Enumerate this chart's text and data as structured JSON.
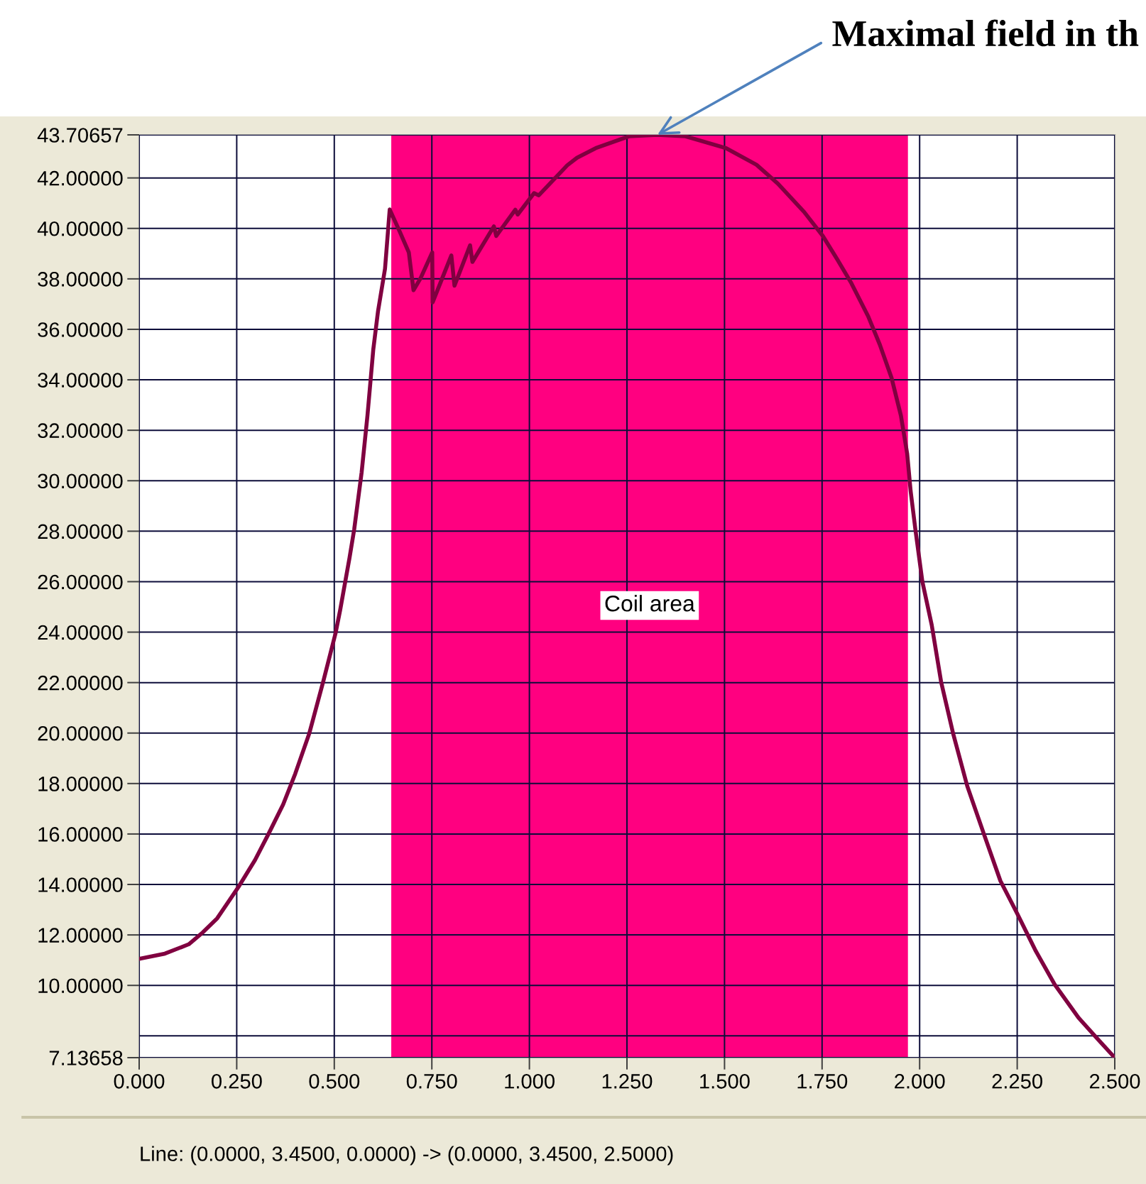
{
  "chart_data": {
    "type": "line",
    "series": [
      {
        "color": "#800040",
        "x": [
          0.0,
          0.066,
          0.127,
          0.163,
          0.2,
          0.254,
          0.297,
          0.333,
          0.369,
          0.4,
          0.436,
          0.472,
          0.503,
          0.515,
          0.539,
          0.551,
          0.57,
          0.585,
          0.6,
          0.612,
          0.63,
          0.642,
          0.667,
          0.691,
          0.703,
          0.721,
          0.751,
          0.752,
          0.776,
          0.8,
          0.808,
          0.848,
          0.854,
          0.909,
          0.915,
          0.964,
          0.97,
          1.012,
          1.024,
          1.097,
          1.122,
          1.17,
          1.255,
          1.328,
          1.4,
          1.504,
          1.582,
          1.637,
          1.704,
          1.752,
          1.789,
          1.825,
          1.868,
          1.898,
          1.928,
          1.952,
          1.968,
          1.977,
          1.989,
          2.007,
          2.031,
          2.055,
          2.086,
          2.122,
          2.164,
          2.207,
          2.25,
          2.298,
          2.346,
          2.407,
          2.456,
          2.5
        ],
        "values": [
          11.05,
          11.26,
          11.63,
          12.1,
          12.66,
          13.89,
          14.97,
          16.05,
          17.17,
          18.39,
          19.99,
          22.06,
          23.94,
          24.87,
          26.94,
          28.07,
          30.32,
          32.58,
          35.21,
          36.71,
          38.4,
          40.75,
          39.9,
          39.05,
          37.55,
          38.02,
          39.05,
          37.07,
          38.0,
          38.93,
          37.73,
          39.33,
          38.67,
          40.08,
          39.7,
          40.74,
          40.55,
          41.4,
          41.31,
          42.5,
          42.8,
          43.18,
          43.65,
          43.70657,
          43.65,
          43.18,
          42.52,
          41.77,
          40.65,
          39.7,
          38.77,
          37.83,
          36.52,
          35.39,
          34.08,
          32.58,
          31.08,
          29.58,
          28.08,
          26.0,
          24.28,
          22.03,
          19.97,
          17.9,
          16.03,
          14.14,
          12.85,
          11.35,
          10.04,
          8.72,
          7.88,
          7.13658
        ]
      }
    ],
    "xlim": [
      0,
      2.5
    ],
    "ylim": [
      7.13658,
      43.70657
    ],
    "xticks": [
      {
        "value": 0,
        "label": "0.000"
      },
      {
        "value": 0.25,
        "label": "0.250"
      },
      {
        "value": 0.5,
        "label": "0.500"
      },
      {
        "value": 0.75,
        "label": "0.750"
      },
      {
        "value": 1.0,
        "label": "1.000"
      },
      {
        "value": 1.25,
        "label": "1.250"
      },
      {
        "value": 1.5,
        "label": "1.500"
      },
      {
        "value": 1.75,
        "label": "1.750"
      },
      {
        "value": 2.0,
        "label": "2.000"
      },
      {
        "value": 2.25,
        "label": "2.250"
      },
      {
        "value": 2.5,
        "label": "2.500"
      }
    ],
    "yticks": [
      7.13658,
      {
        "value": 8,
        "label": null
      },
      {
        "value": 10,
        "label": "10.00000"
      },
      {
        "value": 12,
        "label": "12.00000"
      },
      {
        "value": 14,
        "label": "14.00000"
      },
      {
        "value": 16,
        "label": "16.00000"
      },
      {
        "value": 18,
        "label": "18.00000"
      },
      {
        "value": 20,
        "label": "20.00000"
      },
      {
        "value": 22,
        "label": "22.00000"
      },
      {
        "value": 24,
        "label": "24.00000"
      },
      {
        "value": 26,
        "label": "26.00000"
      },
      {
        "value": 28,
        "label": "28.00000"
      },
      {
        "value": 30,
        "label": "30.00000"
      },
      {
        "value": 32,
        "label": "32.00000"
      },
      {
        "value": 34,
        "label": "34.00000"
      },
      {
        "value": 36,
        "label": "36.00000"
      },
      {
        "value": 38,
        "label": "38.00000"
      },
      {
        "value": 40,
        "label": "40.00000"
      },
      {
        "value": 42,
        "label": "42.00000"
      },
      43.70657
    ],
    "grid": true,
    "bands": [
      {
        "axis": "x",
        "from": 0.646,
        "to": 1.97,
        "label": "Coil area",
        "color": "#ff0080"
      }
    ],
    "annotations": [
      {
        "text": "Maximal field in th",
        "x": 1.328,
        "y": 43.70657
      },
      "Line: (0.0000, 3.4500, 0.0000) -> (0.0000, 3.4500, 2.5000)"
    ]
  }
}
